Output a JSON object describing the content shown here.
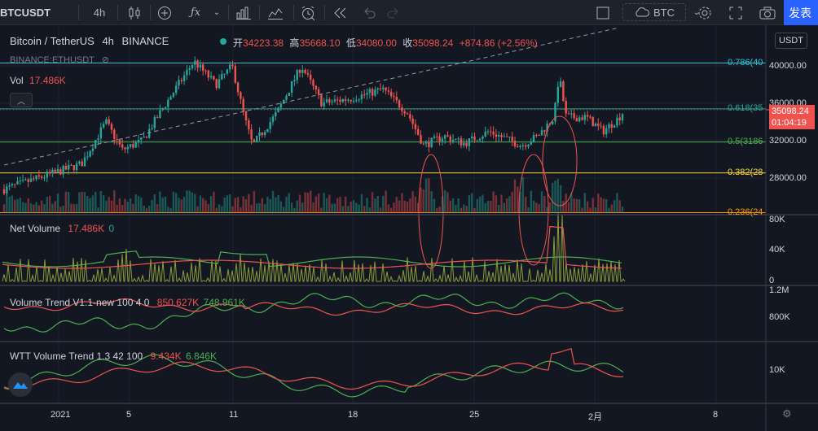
{
  "toolbar": {
    "symbol": "BTCUSDT",
    "interval": "4h",
    "compare_symbol": "BTC",
    "publish": "发表"
  },
  "legend": {
    "title": "Bitcoin / TetherUS",
    "interval": "4h",
    "exchange": "BINANCE",
    "open_label": "开",
    "open": "34223.38",
    "high_label": "高",
    "high": "35668.10",
    "low_label": "低",
    "low": "34080.00",
    "close_label": "收",
    "close": "35098.24",
    "change": "+874.86 (+2.56%)",
    "compare_overlay": "BINANCE:ETHUSDT",
    "vol_label": "Vol",
    "vol_value": "17.486K"
  },
  "indicators": {
    "net_volume_name": "Net Volume",
    "net_volume_v1": "17.486K",
    "net_volume_v2": "0",
    "vt_name": "Volume Trend V1.1-new 100 4 0",
    "vt_v1": "850.627K",
    "vt_v2": "748.961K",
    "wtt_name": "WTT Volume Trend 1.3 42 100",
    "wtt_v1": "9.434K",
    "wtt_v2": "6.846K"
  },
  "price_axis": {
    "currency": "USDT",
    "ticks": [
      "40000.00",
      "36000.00",
      "32000.00",
      "28000.00"
    ],
    "last_price": "35098.24",
    "countdown": "01:04:19"
  },
  "fib_levels": [
    {
      "label": "0.786(40",
      "price": 40300,
      "color": "#26c6da"
    },
    {
      "label": "0.618(35",
      "price": 35400,
      "color": "#26a69a"
    },
    {
      "label": "0.5(3186",
      "price": 31860,
      "color": "#4caf50"
    },
    {
      "label": "0.382(28",
      "price": 28550,
      "color": "#fdd835"
    },
    {
      "label": "0.236(24",
      "price": 24300,
      "color": "#ff9800"
    }
  ],
  "pane_axes": {
    "net_volume": [
      "80K",
      "40K",
      "0"
    ],
    "volume_trend": [
      "1.2M",
      "800K"
    ],
    "wtt": [
      "10K"
    ]
  },
  "time_axis": [
    "2021",
    "5",
    "11",
    "18",
    "25",
    "2月",
    "8"
  ],
  "colors": {
    "up": "#26a69a",
    "down": "#ef5350",
    "bg": "#131722",
    "accent": "#2962ff"
  },
  "icons": {
    "interval_dropdown": "candlestick-icon",
    "add_indicator": "plus-circle-icon",
    "functions": "fx-icon",
    "templates": "bar-chart-icon",
    "layout": "line-chart-icon",
    "alert": "alarm-clock-icon",
    "replay": "rewind-icon",
    "undo": "undo-icon",
    "redo": "redo-icon",
    "settings": "gear-icon",
    "fullscreen": "fullscreen-icon",
    "snapshot": "camera-icon",
    "logo": "tradingview-logo-icon"
  }
}
